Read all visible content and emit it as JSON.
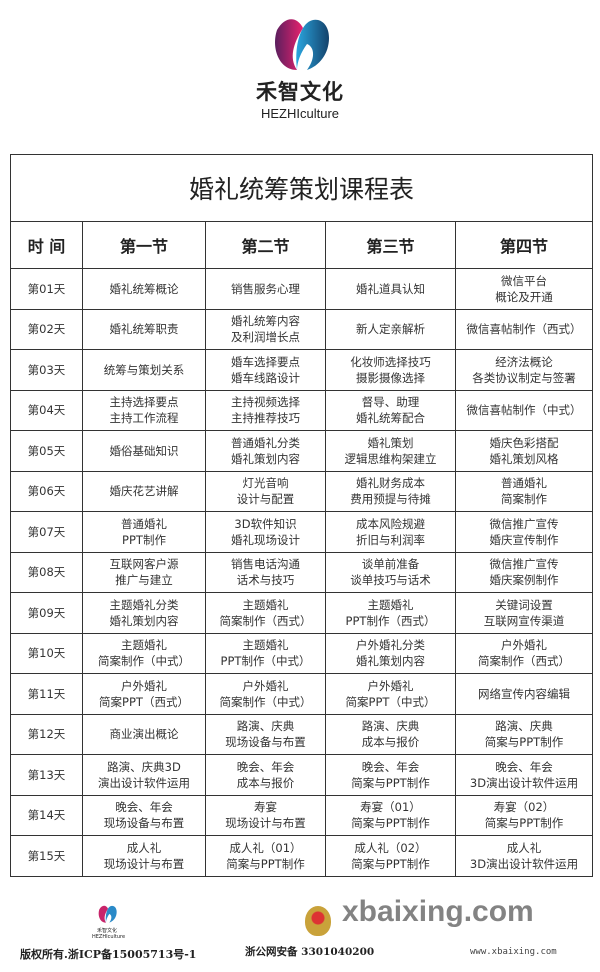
{
  "brand": {
    "name_cn": "禾智文化",
    "name_en": "HEZHIculture"
  },
  "table": {
    "title": "婚礼统筹策划课程表",
    "headers": [
      "时 间",
      "第一节",
      "第二节",
      "第三节",
      "第四节"
    ],
    "rows": [
      {
        "day": "第01天",
        "cells": [
          [
            "婚礼统筹概论"
          ],
          [
            "销售服务心理"
          ],
          [
            "婚礼道具认知"
          ],
          [
            "微信平台",
            "概论及开通"
          ]
        ]
      },
      {
        "day": "第02天",
        "cells": [
          [
            "婚礼统筹职责"
          ],
          [
            "婚礼统筹内容",
            "及利润增长点"
          ],
          [
            "新人定亲解析"
          ],
          [
            "微信喜帖制作（西式）"
          ]
        ]
      },
      {
        "day": "第03天",
        "cells": [
          [
            "统筹与策划关系"
          ],
          [
            "婚车选择要点",
            "婚车线路设计"
          ],
          [
            "化妆师选择技巧",
            "摄影摄像选择"
          ],
          [
            "经济法概论",
            "各类协议制定与签署"
          ]
        ]
      },
      {
        "day": "第04天",
        "cells": [
          [
            "主持选择要点",
            "主持工作流程"
          ],
          [
            "主持视频选择",
            "主持推荐技巧"
          ],
          [
            "督导、助理",
            "婚礼统筹配合"
          ],
          [
            "微信喜帖制作（中式）"
          ]
        ]
      },
      {
        "day": "第05天",
        "cells": [
          [
            "婚俗基础知识"
          ],
          [
            "普通婚礼分类",
            "婚礼策划内容"
          ],
          [
            "婚礼策划",
            "逻辑思维构架建立"
          ],
          [
            "婚庆色彩搭配",
            "婚礼策划风格"
          ]
        ]
      },
      {
        "day": "第06天",
        "cells": [
          [
            "婚庆花艺讲解"
          ],
          [
            "灯光音响",
            "设计与配置"
          ],
          [
            "婚礼财务成本",
            "费用预提与待摊"
          ],
          [
            "普通婚礼",
            "简案制作"
          ]
        ]
      },
      {
        "day": "第07天",
        "cells": [
          [
            "普通婚礼",
            "PPT制作"
          ],
          [
            "3D软件知识",
            "婚礼现场设计"
          ],
          [
            "成本风险规避",
            "折旧与利润率"
          ],
          [
            "微信推广宣传",
            "婚庆宣传制作"
          ]
        ]
      },
      {
        "day": "第08天",
        "cells": [
          [
            "互联网客户源",
            "推广与建立"
          ],
          [
            "销售电话沟通",
            "话术与技巧"
          ],
          [
            "谈单前准备",
            "谈单技巧与话术"
          ],
          [
            "微信推广宣传",
            "婚庆案例制作"
          ]
        ]
      },
      {
        "day": "第09天",
        "cells": [
          [
            "主题婚礼分类",
            "婚礼策划内容"
          ],
          [
            "主题婚礼",
            "简案制作（西式）"
          ],
          [
            "主题婚礼",
            "PPT制作（西式）"
          ],
          [
            "关键词设置",
            "互联网宣传渠道"
          ]
        ]
      },
      {
        "day": "第10天",
        "cells": [
          [
            "主题婚礼",
            "简案制作（中式）"
          ],
          [
            "主题婚礼",
            "PPT制作（中式）"
          ],
          [
            "户外婚礼分类",
            "婚礼策划内容"
          ],
          [
            "户外婚礼",
            "简案制作（西式）"
          ]
        ]
      },
      {
        "day": "第11天",
        "cells": [
          [
            "户外婚礼",
            "简案PPT（西式）"
          ],
          [
            "户外婚礼",
            "简案制作（中式）"
          ],
          [
            "户外婚礼",
            "简案PPT（中式）"
          ],
          [
            "网络宣传内容编辑"
          ]
        ]
      },
      {
        "day": "第12天",
        "cells": [
          [
            "商业演出概论"
          ],
          [
            "路演、庆典",
            "现场设备与布置"
          ],
          [
            "路演、庆典",
            "成本与报价"
          ],
          [
            "路演、庆典",
            "简案与PPT制作"
          ]
        ]
      },
      {
        "day": "第13天",
        "cells": [
          [
            "路演、庆典3D",
            "演出设计软件运用"
          ],
          [
            "晚会、年会",
            "成本与报价"
          ],
          [
            "晚会、年会",
            "简案与PPT制作"
          ],
          [
            "晚会、年会",
            "3D演出设计软件运用"
          ]
        ]
      },
      {
        "day": "第14天",
        "cells": [
          [
            "晚会、年会",
            "现场设备与布置"
          ],
          [
            "寿宴",
            "现场设计与布置"
          ],
          [
            "寿宴（01）",
            "简案与PPT制作"
          ],
          [
            "寿宴（02）",
            "简案与PPT制作"
          ]
        ]
      },
      {
        "day": "第15天",
        "cells": [
          [
            "成人礼",
            "现场设计与布置"
          ],
          [
            "成人礼（01）",
            "简案与PPT制作"
          ],
          [
            "成人礼（02）",
            "简案与PPT制作"
          ],
          [
            "成人礼",
            "3D演出设计软件运用"
          ]
        ]
      }
    ]
  },
  "footer": {
    "logo_cn": "禾智文化",
    "logo_en": "HEZHIculture",
    "icp": "版权所有.浙ICP备15005713号-1",
    "police": "浙公网安备 3301040200",
    "watermark": "xbaixing.com",
    "watermark_url": "www.xbaixing.com"
  }
}
